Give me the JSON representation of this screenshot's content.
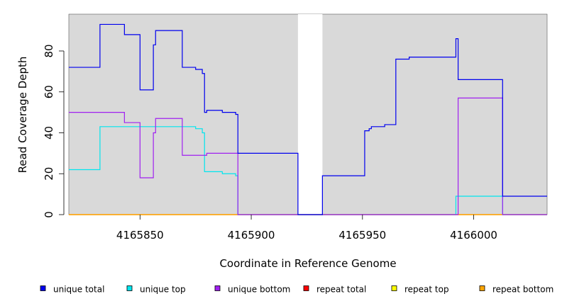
{
  "chart_data": {
    "type": "line",
    "title": "",
    "xlabel": "Coordinate in Reference Genome",
    "ylabel": "Read Coverage Depth",
    "xlim": [
      4165818,
      4166033
    ],
    "ylim": [
      0,
      98
    ],
    "x_ticks": [
      4165850,
      4165900,
      4165950,
      4166000
    ],
    "x_tick_labels": [
      "4165850",
      "4165900",
      "4165950",
      "4166000"
    ],
    "y_ticks": [
      0,
      20,
      40,
      60,
      80
    ],
    "y_tick_labels": [
      "0",
      "20",
      "40",
      "60",
      "80"
    ],
    "grid": false,
    "background_color": "#d9d9d9",
    "gap_region": [
      4165921,
      4165932
    ],
    "legend_position": "bottom",
    "series": [
      {
        "name": "unique total",
        "color": "#0000ee",
        "points": [
          [
            4165818,
            72
          ],
          [
            4165832,
            72
          ],
          [
            4165832,
            93
          ],
          [
            4165843,
            93
          ],
          [
            4165843,
            88
          ],
          [
            4165850,
            88
          ],
          [
            4165850,
            61
          ],
          [
            4165856,
            61
          ],
          [
            4165856,
            83
          ],
          [
            4165857,
            83
          ],
          [
            4165857,
            90
          ],
          [
            4165869,
            90
          ],
          [
            4165869,
            72
          ],
          [
            4165875,
            72
          ],
          [
            4165875,
            71
          ],
          [
            4165878,
            71
          ],
          [
            4165878,
            69
          ],
          [
            4165879,
            69
          ],
          [
            4165879,
            50
          ],
          [
            4165880,
            50
          ],
          [
            4165880,
            51
          ],
          [
            4165887,
            51
          ],
          [
            4165887,
            50
          ],
          [
            4165893,
            50
          ],
          [
            4165893,
            49
          ],
          [
            4165894,
            49
          ],
          [
            4165894,
            30
          ],
          [
            4165921,
            30
          ],
          [
            4165921,
            0
          ],
          [
            4165932,
            0
          ],
          [
            4165932,
            19
          ],
          [
            4165951,
            19
          ],
          [
            4165951,
            41
          ],
          [
            4165953,
            41
          ],
          [
            4165953,
            42
          ],
          [
            4165954,
            42
          ],
          [
            4165954,
            43
          ],
          [
            4165960,
            43
          ],
          [
            4165960,
            44
          ],
          [
            4165965,
            44
          ],
          [
            4165965,
            76
          ],
          [
            4165971,
            76
          ],
          [
            4165971,
            77
          ],
          [
            4165992,
            77
          ],
          [
            4165992,
            86
          ],
          [
            4165993,
            86
          ],
          [
            4165993,
            66
          ],
          [
            4166013,
            66
          ],
          [
            4166013,
            9
          ],
          [
            4166033,
            9
          ]
        ]
      },
      {
        "name": "unique top",
        "color": "#00e5ee",
        "points": [
          [
            4165818,
            22
          ],
          [
            4165832,
            22
          ],
          [
            4165832,
            43
          ],
          [
            4165875,
            43
          ],
          [
            4165875,
            42
          ],
          [
            4165878,
            42
          ],
          [
            4165878,
            40
          ],
          [
            4165879,
            40
          ],
          [
            4165879,
            21
          ],
          [
            4165887,
            21
          ],
          [
            4165887,
            20
          ],
          [
            4165893,
            20
          ],
          [
            4165893,
            19
          ],
          [
            4165894,
            19
          ],
          [
            4165894,
            0
          ],
          [
            4165992,
            0
          ],
          [
            4165992,
            9
          ],
          [
            4166013,
            9
          ],
          [
            4166013,
            0
          ],
          [
            4166033,
            0
          ]
        ]
      },
      {
        "name": "unique bottom",
        "color": "#a020f0",
        "points": [
          [
            4165818,
            50
          ],
          [
            4165843,
            50
          ],
          [
            4165843,
            45
          ],
          [
            4165850,
            45
          ],
          [
            4165850,
            18
          ],
          [
            4165856,
            18
          ],
          [
            4165856,
            40
          ],
          [
            4165857,
            40
          ],
          [
            4165857,
            47
          ],
          [
            4165869,
            47
          ],
          [
            4165869,
            29
          ],
          [
            4165880,
            29
          ],
          [
            4165880,
            30
          ],
          [
            4165894,
            30
          ],
          [
            4165894,
            0
          ],
          [
            4165993,
            0
          ],
          [
            4165993,
            57
          ],
          [
            4166013,
            57
          ],
          [
            4166013,
            0
          ],
          [
            4166033,
            0
          ]
        ]
      },
      {
        "name": "repeat total",
        "color": "#ff0000",
        "points": [
          [
            4165818,
            0
          ],
          [
            4166033,
            0
          ]
        ]
      },
      {
        "name": "repeat top",
        "color": "#ffff00",
        "points": [
          [
            4165818,
            0
          ],
          [
            4166033,
            0
          ]
        ]
      },
      {
        "name": "repeat bottom",
        "color": "#ffa500",
        "points": [
          [
            4165818,
            0
          ],
          [
            4166033,
            0
          ]
        ]
      }
    ]
  }
}
